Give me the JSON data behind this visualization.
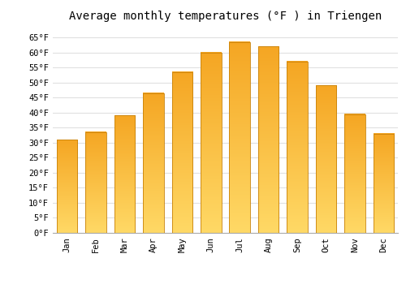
{
  "title": "Average monthly temperatures (°F ) in Triengen",
  "months": [
    "Jan",
    "Feb",
    "Mar",
    "Apr",
    "May",
    "Jun",
    "Jul",
    "Aug",
    "Sep",
    "Oct",
    "Nov",
    "Dec"
  ],
  "values": [
    31,
    33.5,
    39,
    46.5,
    53.5,
    60,
    63.5,
    62,
    57,
    49,
    39.5,
    33
  ],
  "bar_color_top": "#F5A623",
  "bar_color_bottom": "#FFD966",
  "bar_edge_color": "#C8820A",
  "ylim": [
    0,
    68
  ],
  "yticks": [
    0,
    5,
    10,
    15,
    20,
    25,
    30,
    35,
    40,
    45,
    50,
    55,
    60,
    65
  ],
  "ytick_labels": [
    "0°F",
    "5°F",
    "10°F",
    "15°F",
    "20°F",
    "25°F",
    "30°F",
    "35°F",
    "40°F",
    "45°F",
    "50°F",
    "55°F",
    "60°F",
    "65°F"
  ],
  "background_color": "#ffffff",
  "grid_color": "#e0e0e0",
  "title_fontsize": 10,
  "tick_fontsize": 7.5,
  "font_family": "monospace"
}
